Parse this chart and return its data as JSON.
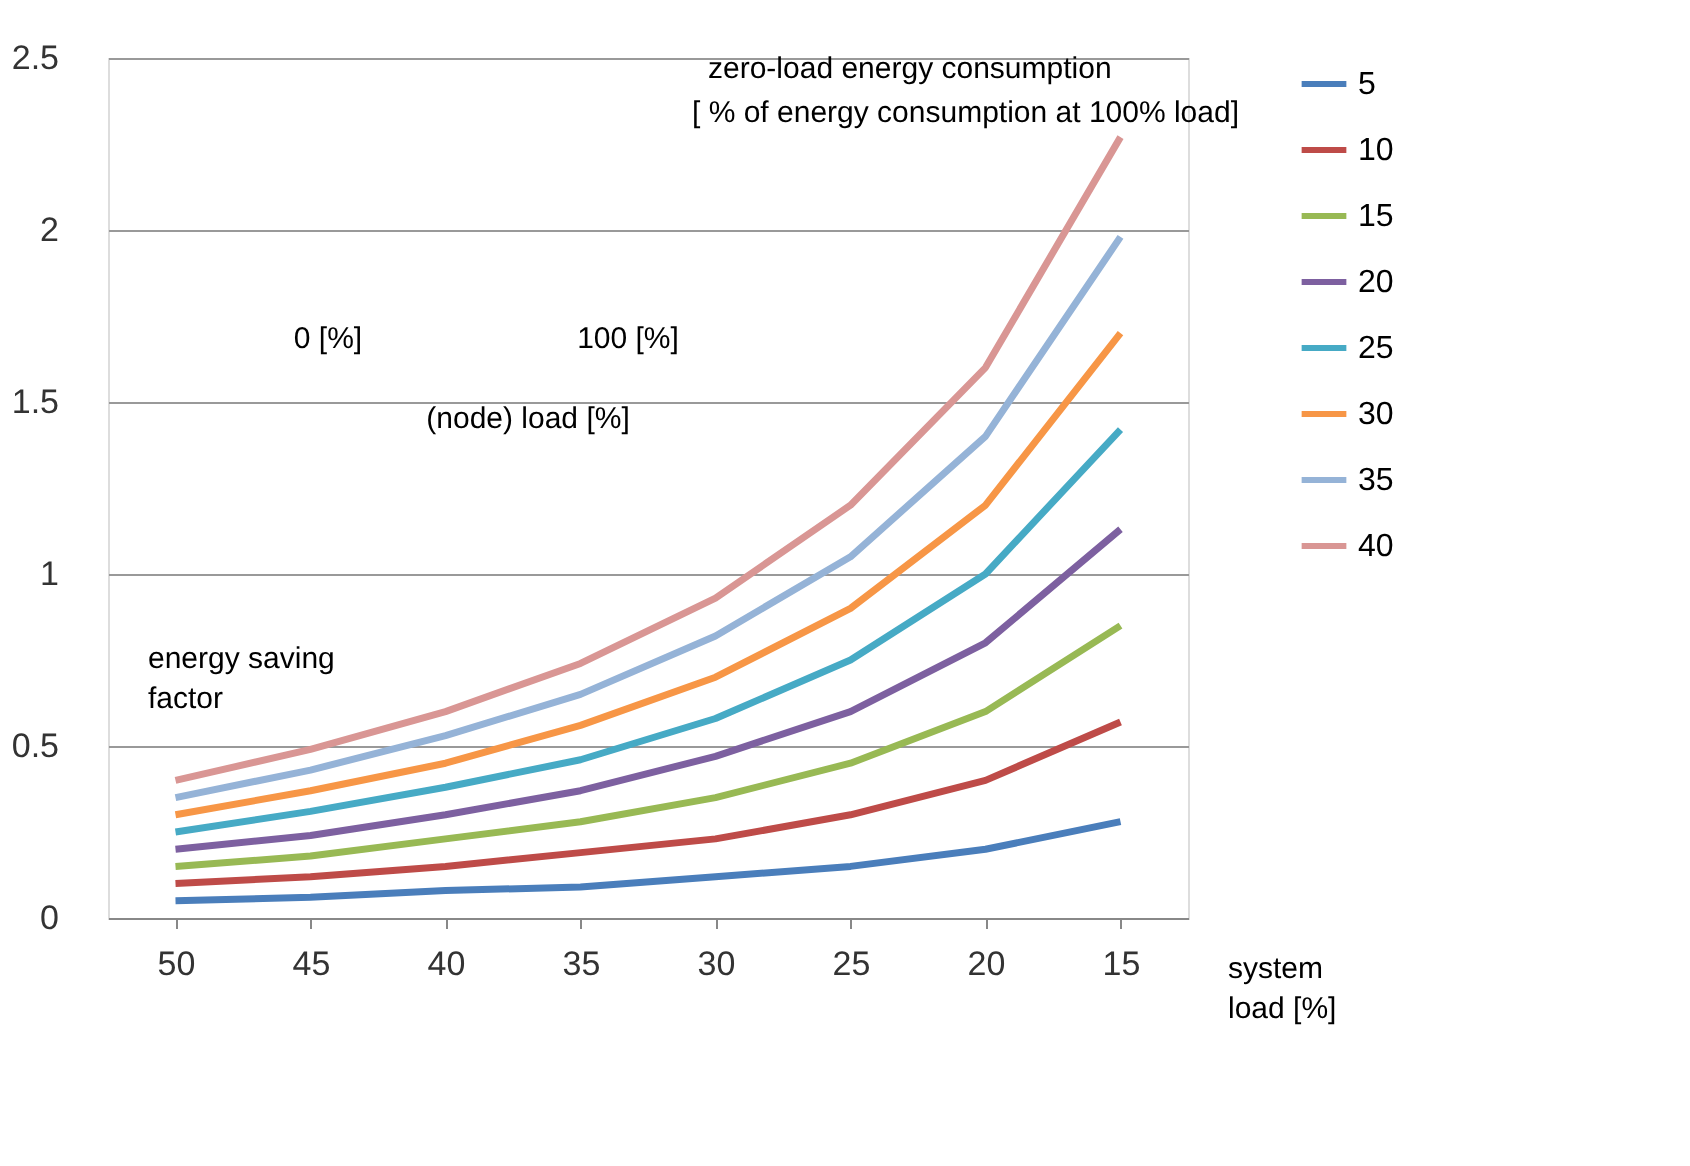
{
  "chart_data": {
    "type": "line",
    "categories": [
      "50",
      "45",
      "40",
      "35",
      "30",
      "25",
      "20",
      "15"
    ],
    "series": [
      {
        "name": "5",
        "color": "#4a7ebb",
        "values": [
          0.05,
          0.06,
          0.08,
          0.09,
          0.12,
          0.15,
          0.2,
          0.28
        ]
      },
      {
        "name": "10",
        "color": "#be4b48",
        "values": [
          0.1,
          0.12,
          0.15,
          0.19,
          0.23,
          0.3,
          0.4,
          0.57
        ]
      },
      {
        "name": "15",
        "color": "#98b954",
        "values": [
          0.15,
          0.18,
          0.23,
          0.28,
          0.35,
          0.45,
          0.6,
          0.85
        ]
      },
      {
        "name": "20",
        "color": "#7d60a0",
        "values": [
          0.2,
          0.24,
          0.3,
          0.37,
          0.47,
          0.6,
          0.8,
          1.13
        ]
      },
      {
        "name": "25",
        "color": "#46aac5",
        "values": [
          0.25,
          0.31,
          0.38,
          0.46,
          0.58,
          0.75,
          1.0,
          1.42
        ]
      },
      {
        "name": "30",
        "color": "#f79646",
        "values": [
          0.3,
          0.37,
          0.45,
          0.56,
          0.7,
          0.9,
          1.2,
          1.7
        ]
      },
      {
        "name": "35",
        "color": "#95b3d7",
        "values": [
          0.35,
          0.43,
          0.53,
          0.65,
          0.82,
          1.05,
          1.4,
          1.98
        ]
      },
      {
        "name": "40",
        "color": "#d99694",
        "values": [
          0.4,
          0.49,
          0.6,
          0.74,
          0.93,
          1.2,
          1.6,
          2.27
        ]
      }
    ],
    "ylim": [
      0,
      2.5
    ],
    "yticks": [
      0,
      0.5,
      1,
      1.5,
      2,
      2.5
    ],
    "grid": "y",
    "legend": "right",
    "marker": "none",
    "line_style": "solid",
    "annotations": [
      "zero-load energy consumption",
      "[ % of energy consumption at 100% load]",
      "0 [%]",
      "100 [%]",
      "(node)  load [%]",
      "energy saving\nfactor",
      "system\nload [%]"
    ]
  }
}
